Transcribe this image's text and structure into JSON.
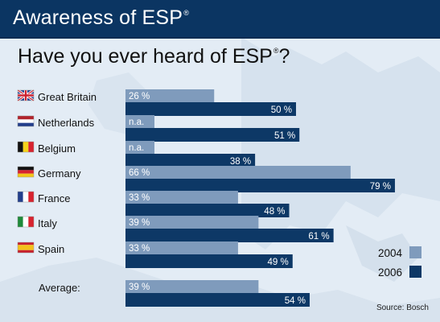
{
  "header": {
    "title": "Awareness of ESP",
    "title_mark": "®"
  },
  "chart_data": {
    "type": "bar",
    "orientation": "horizontal",
    "title": "Have you ever heard of ESP",
    "title_mark": "®",
    "title_end": "?",
    "unit": "%",
    "categories": [
      "Great Britain",
      "Netherlands",
      "Belgium",
      "Germany",
      "France",
      "Italy",
      "Spain",
      "Average:"
    ],
    "series": [
      {
        "name": "2004",
        "color": "#7f9bbc",
        "values": [
          26,
          null,
          null,
          66,
          33,
          39,
          33,
          39
        ],
        "labels": [
          "26 %",
          "n.a.",
          "n.a.",
          "66 %",
          "33 %",
          "39 %",
          "33 %",
          "39 %"
        ]
      },
      {
        "name": "2006",
        "color": "#0d3866",
        "values": [
          50,
          51,
          38,
          79,
          48,
          61,
          49,
          54
        ],
        "labels": [
          "50 %",
          "51 %",
          "38 %",
          "79 %",
          "48 %",
          "61 %",
          "49 %",
          "54 %"
        ]
      }
    ],
    "xlim": [
      0,
      100
    ],
    "legend_position": "bottom-right",
    "flags": [
      "uk-flag-icon",
      "netherlands-flag-icon",
      "belgium-flag-icon",
      "germany-flag-icon",
      "france-flag-icon",
      "italy-flag-icon",
      "spain-flag-icon",
      null
    ]
  },
  "source": "Source: Bosch"
}
